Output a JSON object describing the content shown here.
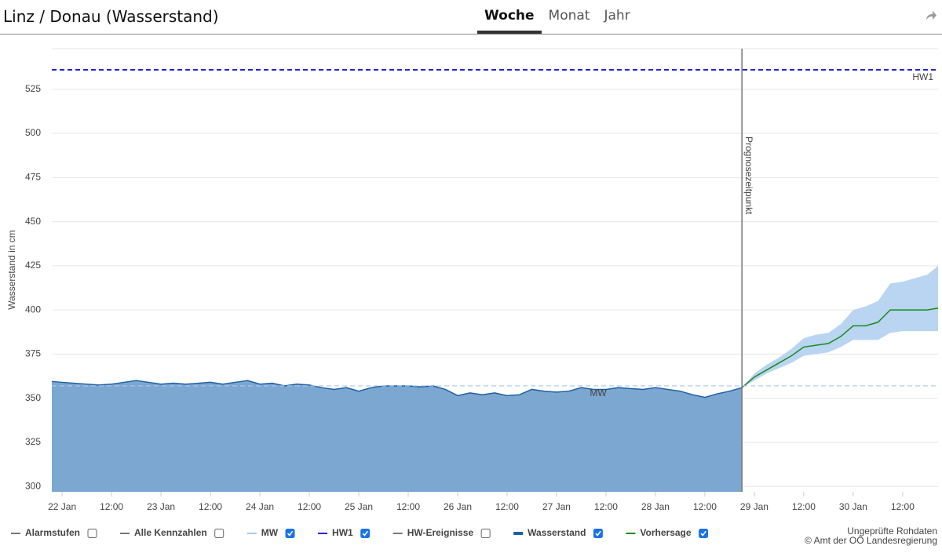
{
  "header": {
    "title": "Linz / Donau (Wasserstand)",
    "tabs": [
      "Woche",
      "Monat",
      "Jahr"
    ],
    "active_tab": 0
  },
  "chart_data": {
    "type": "area",
    "y_label": "Wasserstand in cm",
    "xlim": [
      -2.5,
      212.6
    ],
    "xticks": [
      {
        "value": 0,
        "label": "22 Jan"
      },
      {
        "value": 12,
        "label": "12:00"
      },
      {
        "value": 24,
        "label": "23 Jan"
      },
      {
        "value": 36,
        "label": "12:00"
      },
      {
        "value": 48,
        "label": "24 Jan"
      },
      {
        "value": 60,
        "label": "12:00"
      },
      {
        "value": 72,
        "label": "25 Jan"
      },
      {
        "value": 84,
        "label": "12:00"
      },
      {
        "value": 96,
        "label": "26 Jan"
      },
      {
        "value": 108,
        "label": "12:00"
      },
      {
        "value": 120,
        "label": "27 Jan"
      },
      {
        "value": 132,
        "label": "12:00"
      },
      {
        "value": 144,
        "label": "28 Jan"
      },
      {
        "value": 156,
        "label": "12:00"
      },
      {
        "value": 168,
        "label": "29 Jan"
      },
      {
        "value": 180,
        "label": "12:00"
      },
      {
        "value": 192,
        "label": "30 Jan"
      },
      {
        "value": 204,
        "label": "12:00"
      }
    ],
    "ylim": [
      297,
      548
    ],
    "yticks": [
      300,
      325,
      350,
      375,
      400,
      425,
      450,
      475,
      500,
      525
    ],
    "grid": true,
    "series": [
      {
        "color": "#1f5fa0",
        "fill": "#7ba7d1",
        "x": [
          -2.5,
          0,
          3,
          6,
          9,
          12,
          15,
          18,
          21,
          24,
          27,
          30,
          33,
          36,
          39,
          42,
          45,
          48,
          51,
          54,
          57,
          60,
          63,
          66,
          69,
          72,
          75,
          78,
          81,
          84,
          87,
          90,
          93,
          96,
          99,
          102,
          105,
          108,
          111,
          114,
          117,
          120,
          123,
          126,
          129,
          132,
          135,
          138,
          141,
          144,
          147,
          150,
          153,
          156,
          159,
          162,
          165
        ],
        "values": [
          359.5,
          359,
          358.5,
          358,
          357.5,
          358,
          359,
          360,
          359,
          358,
          358.5,
          358,
          358.5,
          359,
          358,
          359,
          360,
          358,
          358.5,
          357,
          358,
          357.5,
          356,
          355,
          356,
          354,
          356,
          357,
          357,
          357,
          356.5,
          357,
          355,
          351.5,
          353,
          352,
          353,
          351.5,
          352,
          355,
          354,
          353.5,
          354,
          356,
          355,
          355,
          356,
          355.5,
          355,
          356,
          355,
          354,
          352,
          350.5,
          352.5,
          354,
          356
        ]
      },
      {
        "color": "#1a8a1a",
        "band_color": "#b9d5f1",
        "x": [
          165,
          168,
          171,
          174,
          177,
          180,
          183,
          186,
          189,
          192,
          195,
          198,
          201,
          204,
          207,
          210,
          212.6
        ],
        "values": [
          356,
          362,
          366,
          370,
          374,
          379,
          380,
          381,
          385,
          391,
          391,
          393,
          400,
          400,
          400,
          400,
          401
        ],
        "lower": [
          356,
          360,
          364,
          367,
          370,
          374,
          375,
          376,
          379,
          383,
          383,
          383,
          387,
          388,
          388,
          388,
          388
        ],
        "upper": [
          356,
          364,
          369,
          373,
          378,
          384,
          386,
          387,
          392,
          400,
          402,
          405,
          415,
          416,
          418,
          420,
          425
        ]
      }
    ],
    "reference_lines": [
      {
        "label": "HW1",
        "value": 536,
        "color": "#2323d6"
      },
      {
        "label": "MW",
        "value": 357,
        "color": "#a8c8f0"
      }
    ],
    "marker": {
      "label": "Prognosezeitpunkt",
      "x": 165,
      "color": "#777777"
    },
    "legend": [
      {
        "name": "Alarmstufen",
        "color": "#777777",
        "checked": false
      },
      {
        "name": "Alle Kennzahlen",
        "color": "#777777",
        "checked": false
      },
      {
        "name": "MW",
        "color": "#a8c8f0",
        "checked": true
      },
      {
        "name": "HW1",
        "color": "#2323d6",
        "checked": true
      },
      {
        "name": "HW-Ereignisse",
        "color": "#777777",
        "checked": false
      },
      {
        "name": "Wasserstand",
        "color": "#1f5fa0",
        "checked": true
      },
      {
        "name": "Vorhersage",
        "color": "#1a8a1a",
        "checked": true
      }
    ]
  },
  "footer": {
    "lines": [
      "Ungeprüfte Rohdaten",
      "© Amt der OÖ Landesregierung"
    ]
  }
}
